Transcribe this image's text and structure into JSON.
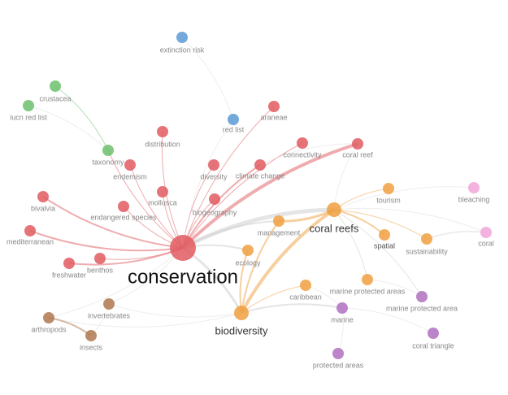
{
  "nodes": [
    {
      "label": "conservation"
    },
    {
      "label": "distribution"
    },
    {
      "label": "endemism"
    },
    {
      "label": "diversity"
    },
    {
      "label": "climate change"
    },
    {
      "label": "connectivity"
    },
    {
      "label": "coral reef"
    },
    {
      "label": "araneae"
    },
    {
      "label": "mollusca"
    },
    {
      "label": "biogeography"
    },
    {
      "label": "endangered species"
    },
    {
      "label": "bivalvia"
    },
    {
      "label": "mediterranean"
    },
    {
      "label": "benthos"
    },
    {
      "label": "freshwater"
    },
    {
      "label": "extinction risk"
    },
    {
      "label": "red list"
    },
    {
      "label": "crustacea"
    },
    {
      "label": "iucn red list"
    },
    {
      "label": "taxonomy"
    },
    {
      "label": "coral reefs"
    },
    {
      "label": "tourism"
    },
    {
      "label": "spatial"
    },
    {
      "label": "sustainability"
    },
    {
      "label": "management"
    },
    {
      "label": "ecology"
    },
    {
      "label": "caribbean"
    },
    {
      "label": "marine protected areas"
    },
    {
      "label": "biodiversity"
    },
    {
      "label": "bleaching"
    },
    {
      "label": "coral"
    },
    {
      "label": "marine protected area"
    },
    {
      "label": "marine"
    },
    {
      "label": "coral triangle"
    },
    {
      "label": "protected areas"
    },
    {
      "label": "arthropods"
    },
    {
      "label": "invertebrates"
    },
    {
      "label": "insects"
    }
  ]
}
